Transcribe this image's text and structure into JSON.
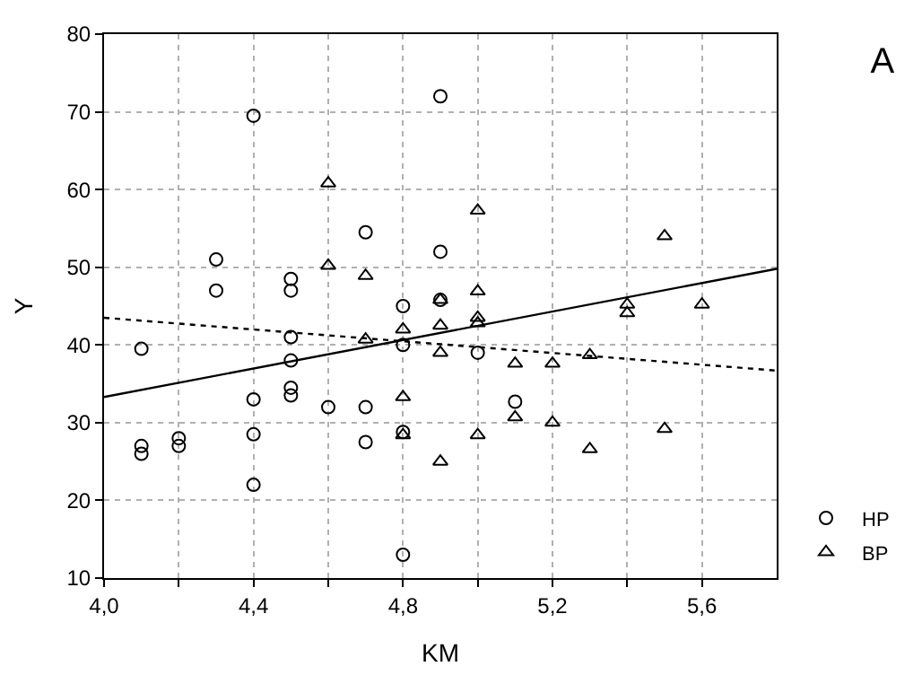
{
  "chart_data": {
    "type": "scatter",
    "title": "A",
    "xlabel": "KM",
    "ylabel": "Y",
    "xlim": [
      4.0,
      5.8
    ],
    "xticks": [
      {
        "value": 4.0,
        "label": "4,0"
      },
      {
        "value": 4.2,
        "label": null
      },
      {
        "value": 4.4,
        "label": "4,4"
      },
      {
        "value": 4.6,
        "label": null
      },
      {
        "value": 4.8,
        "label": "4,8"
      },
      {
        "value": 5.0,
        "label": null
      },
      {
        "value": 5.2,
        "label": "5,2"
      },
      {
        "value": 5.4,
        "label": null
      },
      {
        "value": 5.6,
        "label": "5,6"
      }
    ],
    "ylim": [
      10,
      80
    ],
    "yticks": [
      10,
      20,
      30,
      40,
      50,
      60,
      70,
      80
    ],
    "grid": true,
    "legend": "bottom right",
    "series": [
      {
        "name": "HP",
        "marker": "circle",
        "color": "#000000",
        "x": [
          4.1,
          4.1,
          4.1,
          4.2,
          4.2,
          4.3,
          4.3,
          4.4,
          4.4,
          4.4,
          4.4,
          4.5,
          4.5,
          4.5,
          4.5,
          4.5,
          4.5,
          4.6,
          4.7,
          4.7,
          4.7,
          4.8,
          4.8,
          4.8,
          4.8,
          4.9,
          4.9,
          4.9,
          5.0,
          5.1
        ],
        "values": [
          39.5,
          27,
          26,
          28,
          27,
          51,
          47,
          69.5,
          33,
          28.5,
          22,
          48.5,
          47,
          41,
          38,
          34.5,
          33.5,
          32,
          54.5,
          32,
          27.5,
          45,
          40,
          28.8,
          13,
          72,
          52,
          45.8,
          39,
          32.7
        ]
      },
      {
        "name": "BP",
        "marker": "triangle",
        "color": "#000000",
        "x": [
          4.6,
          4.6,
          4.7,
          4.7,
          4.8,
          4.8,
          4.8,
          4.9,
          4.9,
          4.9,
          4.9,
          5.0,
          5.0,
          5.0,
          5.0,
          5.0,
          5.1,
          5.1,
          5.2,
          5.2,
          5.3,
          5.3,
          5.4,
          5.4,
          5.5,
          5.5,
          5.6
        ],
        "values": [
          60.8,
          50.2,
          48.9,
          40.7,
          42,
          33.3,
          28.4,
          45.8,
          42.5,
          39,
          25,
          57.3,
          46.9,
          43.5,
          42.8,
          28.4,
          37.6,
          30.7,
          37.6,
          30,
          38.7,
          26.6,
          45.2,
          44.1,
          54,
          29.2,
          45.2
        ]
      },
      {
        "type": "line",
        "line_style": "solid",
        "color": "#000000",
        "x": [
          4.0,
          5.8
        ],
        "values": [
          33.3,
          49.8
        ]
      },
      {
        "type": "line",
        "line_style": "dotted",
        "color": "#000000",
        "x": [
          4.0,
          5.8
        ],
        "values": [
          43.5,
          36.7
        ]
      }
    ]
  }
}
